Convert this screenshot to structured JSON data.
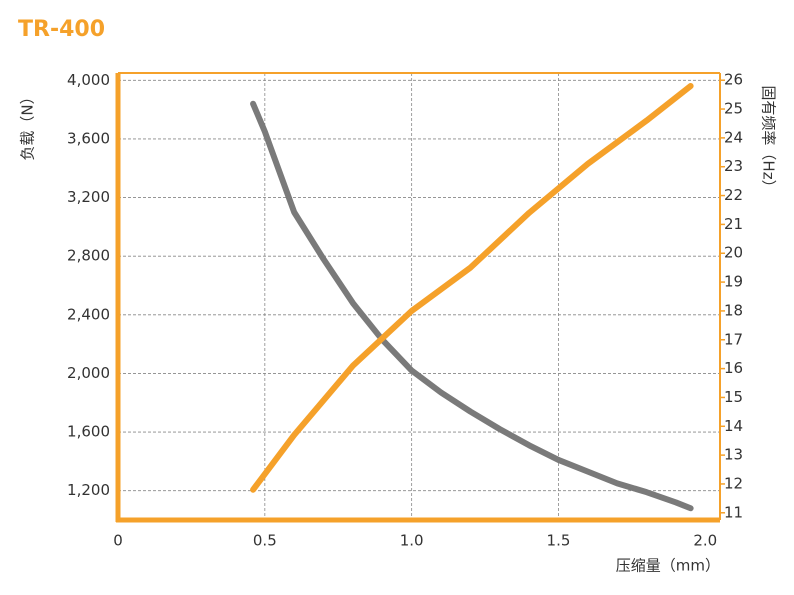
{
  "chart_data": {
    "type": "line",
    "title": "TR-400",
    "x_label": "压缩量（mm）",
    "y_label": "负载（N）",
    "y2_label": "固有频率（Hz）",
    "xlim": [
      0,
      2.05
    ],
    "xticks": [
      0,
      0.5,
      {
        "value": 1,
        "label": "1.0"
      },
      1.5,
      {
        "value": 2,
        "label": "2.0"
      }
    ],
    "ylim": [
      1000,
      4050
    ],
    "yticks": [
      {
        "value": 1200,
        "label": "1,200"
      },
      {
        "value": 1600,
        "label": "1,600"
      },
      {
        "value": 2000,
        "label": "2,000"
      },
      {
        "value": 2400,
        "label": "2,400"
      },
      {
        "value": 2800,
        "label": "2,800"
      },
      {
        "value": 3200,
        "label": "3,200"
      },
      {
        "value": 3600,
        "label": "3,600"
      },
      {
        "value": 4000,
        "label": "4,000"
      }
    ],
    "y2lim": [
      10.75,
      26.25
    ],
    "y2ticks": [
      11,
      12,
      13,
      14,
      15,
      16,
      17,
      18,
      19,
      20,
      21,
      22,
      23,
      24,
      25,
      26
    ],
    "grid": true,
    "frame_color": "#f5a12a",
    "series": [
      {
        "color": "#7a7a7a",
        "axis": "y",
        "x": [
          0.46,
          0.5,
          0.6,
          0.7,
          0.8,
          0.9,
          1.0,
          1.1,
          1.2,
          1.3,
          1.4,
          1.5,
          1.6,
          1.7,
          1.8,
          1.9,
          1.95
        ],
        "values": [
          3840,
          3650,
          3100,
          2780,
          2480,
          2230,
          2020,
          1870,
          1740,
          1620,
          1510,
          1410,
          1330,
          1250,
          1190,
          1120,
          1080
        ]
      },
      {
        "color": "#f5a12a",
        "axis": "y2",
        "x": [
          0.46,
          0.6,
          0.8,
          1.0,
          1.2,
          1.4,
          1.6,
          1.8,
          1.95
        ],
        "values": [
          11.8,
          13.7,
          16.1,
          18.0,
          19.5,
          21.4,
          23.1,
          24.6,
          25.8
        ]
      }
    ]
  }
}
